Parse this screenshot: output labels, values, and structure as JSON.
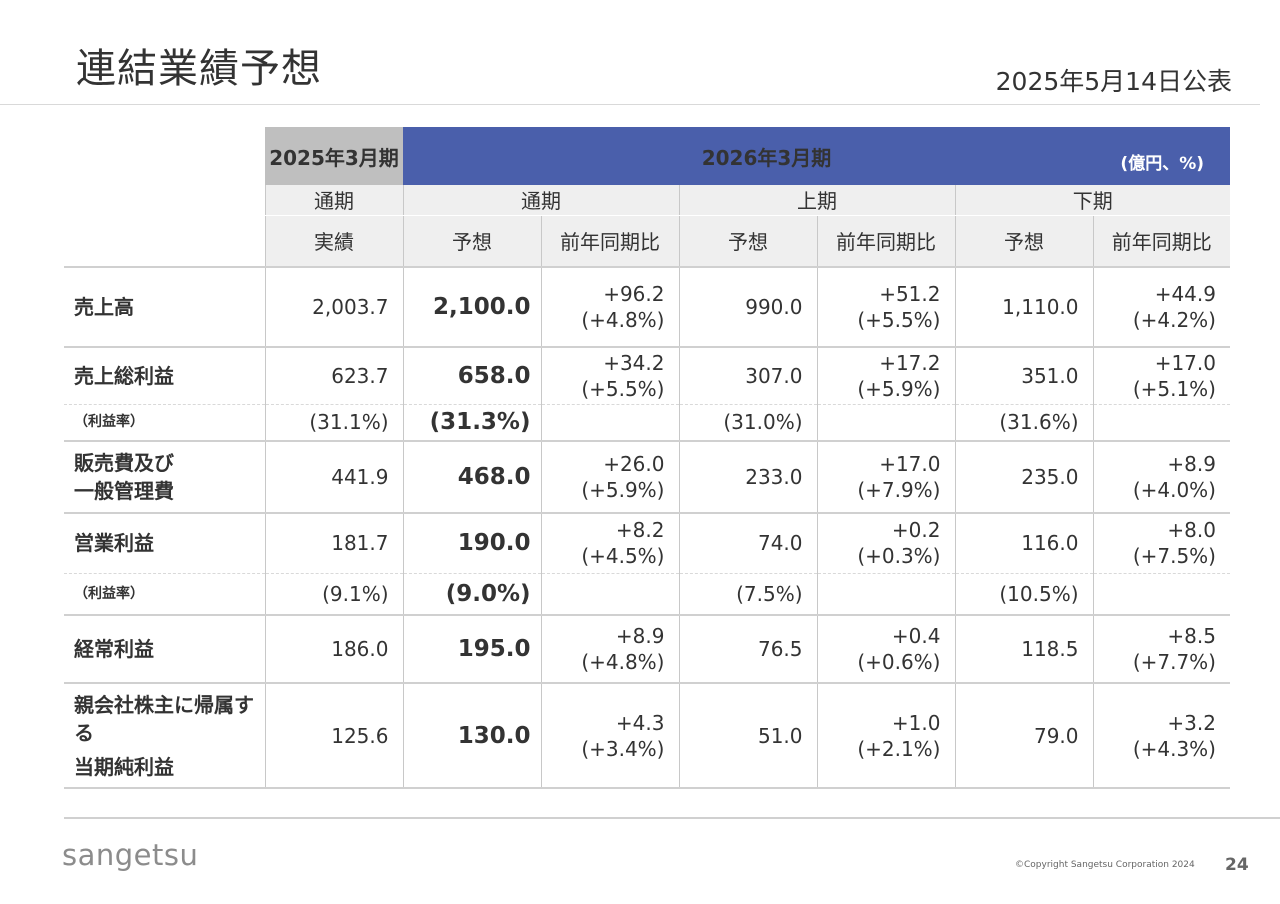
{
  "page": {
    "title": "連結業績予想",
    "published": "2025年5月14日公表"
  },
  "table": {
    "prev_period": "2025年3月期",
    "cur_period": "2026年3月期",
    "unit": "(億円、%)",
    "groups": [
      "通期",
      "通期",
      "上期",
      "下期"
    ],
    "subheaders": [
      "実績",
      "予想",
      "前年同期比",
      "予想",
      "前年同期比",
      "予想",
      "前年同期比"
    ],
    "rows": [
      {
        "label": "売上高",
        "label2": "",
        "type": "main",
        "actual": "2,003.7",
        "fy_fc": "2,100.0",
        "fy_yoy1": "+96.2",
        "fy_yoy2": "(+4.8%)",
        "h1_fc": "990.0",
        "h1_yoy1": "+51.2",
        "h1_yoy2": "(+5.5%)",
        "h2_fc": "1,110.0",
        "h2_yoy1": "+44.9",
        "h2_yoy2": "(+4.2%)"
      },
      {
        "label": "売上総利益",
        "label2": "",
        "type": "main",
        "actual": "623.7",
        "fy_fc": "658.0",
        "fy_yoy1": "+34.2",
        "fy_yoy2": "(+5.5%)",
        "h1_fc": "307.0",
        "h1_yoy1": "+17.2",
        "h1_yoy2": "(+5.9%)",
        "h2_fc": "351.0",
        "h2_yoy1": "+17.0",
        "h2_yoy2": "(+5.1%)"
      },
      {
        "label": "（利益率）",
        "label2": "",
        "type": "ratio",
        "actual": "(31.1%)",
        "fy_fc": "(31.3%)",
        "fy_yoy1": "",
        "fy_yoy2": "",
        "h1_fc": "(31.0%)",
        "h1_yoy1": "",
        "h1_yoy2": "",
        "h2_fc": "(31.6%)",
        "h2_yoy1": "",
        "h2_yoy2": ""
      },
      {
        "label": "販売費及び",
        "label2": "一般管理費",
        "type": "main",
        "actual": "441.9",
        "fy_fc": "468.0",
        "fy_yoy1": "+26.0",
        "fy_yoy2": "(+5.9%)",
        "h1_fc": "233.0",
        "h1_yoy1": "+17.0",
        "h1_yoy2": "(+7.9%)",
        "h2_fc": "235.0",
        "h2_yoy1": "+8.9",
        "h2_yoy2": "(+4.0%)"
      },
      {
        "label": "営業利益",
        "label2": "",
        "type": "main",
        "actual": "181.7",
        "fy_fc": "190.0",
        "fy_yoy1": "+8.2",
        "fy_yoy2": "(+4.5%)",
        "h1_fc": "74.0",
        "h1_yoy1": "+0.2",
        "h1_yoy2": "(+0.3%)",
        "h2_fc": "116.0",
        "h2_yoy1": "+8.0",
        "h2_yoy2": "(+7.5%)"
      },
      {
        "label": "（利益率）",
        "label2": "",
        "type": "ratio",
        "actual": "(9.1%)",
        "fy_fc": "(9.0%)",
        "fy_yoy1": "",
        "fy_yoy2": "",
        "h1_fc": "(7.5%)",
        "h1_yoy1": "",
        "h1_yoy2": "",
        "h2_fc": "(10.5%)",
        "h2_yoy1": "",
        "h2_yoy2": ""
      },
      {
        "label": "経常利益",
        "label2": "",
        "type": "main",
        "actual": "186.0",
        "fy_fc": "195.0",
        "fy_yoy1": "+8.9",
        "fy_yoy2": "(+4.8%)",
        "h1_fc": "76.5",
        "h1_yoy1": "+0.4",
        "h1_yoy2": "(+0.6%)",
        "h2_fc": "118.5",
        "h2_yoy1": "+8.5",
        "h2_yoy2": "(+7.7%)"
      },
      {
        "label": "親会社株主に帰属する",
        "label2": "当期純利益",
        "type": "main",
        "actual": "125.6",
        "fy_fc": "130.0",
        "fy_yoy1": "+4.3",
        "fy_yoy2": "(+3.4%)",
        "h1_fc": "51.0",
        "h1_yoy1": "+1.0",
        "h1_yoy2": "(+2.1%)",
        "h2_fc": "79.0",
        "h2_yoy1": "+3.2",
        "h2_yoy2": "(+4.3%)"
      }
    ]
  },
  "footer": {
    "logo": "sangetsu",
    "copyright": "©Copyright Sangetsu Corporation 2024",
    "page_number": "24"
  }
}
